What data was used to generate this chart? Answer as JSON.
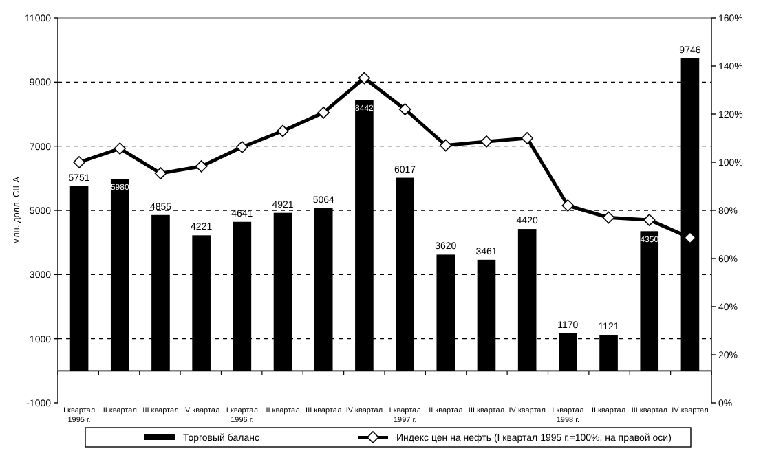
{
  "chart_data": {
    "type": "bar",
    "ylabel": "млн. долл. США",
    "categories": [
      "I квартал 1995 г.",
      "II квартал",
      "III квартал",
      "IV квартал",
      "I квартал 1996 г.",
      "II квартал",
      "III квартал",
      "IV квартал",
      "I квартал 1997 г.",
      "II квартал",
      "III квартал",
      "IV квартал",
      "I квартал 1998 г.",
      "II квартал",
      "III квартал",
      "IV квартал"
    ],
    "series": [
      {
        "name": "Торговый баланс",
        "color": "#000000",
        "values": [
          5751,
          5980,
          4855,
          4221,
          4641,
          4921,
          5064,
          8442,
          6017,
          3620,
          3461,
          4420,
          1170,
          1121,
          4350,
          9746
        ],
        "value_labels": [
          "5751",
          "5980",
          "4855",
          "4221",
          "4641",
          "4921",
          "5064",
          "8442",
          "6017",
          "3620",
          "3461",
          "4420",
          "1170",
          "1121",
          "4350",
          "9746"
        ]
      },
      {
        "name": "Индекс цен на нефть (I квартал 1995 г.=100%, на правой оси)",
        "type": "line",
        "axis": "y2",
        "color": "#000000",
        "values": [
          100,
          105.7,
          95.4,
          98.3,
          106.3,
          113,
          120.6,
          135,
          122,
          107,
          108.6,
          110,
          82,
          77,
          76,
          68.6
        ]
      }
    ],
    "ylim": [
      -1000,
      11000
    ],
    "yticks": [
      -1000,
      1000,
      3000,
      5000,
      7000,
      9000,
      11000
    ],
    "y2lim": [
      0,
      160
    ],
    "y2ticks": [
      {
        "value": 0,
        "label": "0%"
      },
      {
        "value": 20,
        "label": "20%"
      },
      {
        "value": 40,
        "label": "40%"
      },
      {
        "value": 60,
        "label": "60%"
      },
      {
        "value": 80,
        "label": "80%"
      },
      {
        "value": 100,
        "label": "100%"
      },
      {
        "value": 120,
        "label": "120%"
      },
      {
        "value": 140,
        "label": "140%"
      },
      {
        "value": 160,
        "label": "160%"
      }
    ],
    "grid": "y",
    "legend": "bottom",
    "marker": "diamond",
    "line_style": "solid"
  }
}
